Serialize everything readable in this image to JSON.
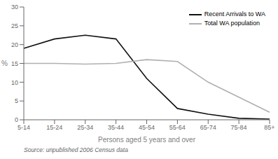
{
  "chart_data": {
    "type": "line",
    "categories": [
      "5-14",
      "15-24",
      "25-34",
      "35-44",
      "45-54",
      "55-64",
      "65-74",
      "75-84",
      "85+"
    ],
    "series": [
      {
        "name": "Recent Arrivals to WA",
        "color": "#111111",
        "values": [
          19.0,
          21.5,
          22.5,
          21.5,
          11.0,
          3.0,
          1.5,
          0.4,
          0.2
        ]
      },
      {
        "name": "Total WA population",
        "color": "#b0b0b0",
        "values": [
          15.0,
          15.0,
          14.8,
          15.0,
          16.0,
          15.5,
          10.0,
          6.0,
          2.0
        ]
      }
    ],
    "xlabel": "Persons aged 5 years and over",
    "ylabel": "%",
    "ylim": [
      0,
      30
    ],
    "yticks": [
      0,
      5,
      10,
      15,
      20,
      25,
      30
    ],
    "grid": false,
    "legend": "upper right",
    "annotations": [
      "Source: unpublished 2006 Census data"
    ]
  }
}
